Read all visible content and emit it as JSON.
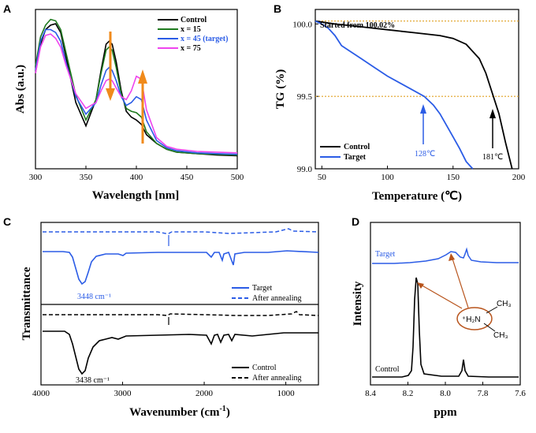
{
  "colors": {
    "black": "#000000",
    "green": "#1f7a1f",
    "blue": "#2b5ce6",
    "magenta": "#ee44ee",
    "orange": "#f08a1a",
    "dotted": "#e0a020",
    "brown": "#b8541c"
  },
  "chart_data": [
    {
      "id": "A",
      "type": "line",
      "panel_label": "A",
      "xlabel": "Wavelength [nm]",
      "ylabel": "Abs (a.u.)",
      "ylabel_display": "Abs (a.u.)",
      "xlim": [
        300,
        500
      ],
      "xticks": [
        "300",
        "350",
        "400",
        "450",
        "500"
      ],
      "legend": [
        "Control",
        "x = 15",
        "x = 45 (target)",
        "x = 75"
      ],
      "series": [
        {
          "name": "Control",
          "x": [
            300,
            305,
            310,
            315,
            320,
            325,
            330,
            340,
            350,
            360,
            365,
            370,
            373,
            376,
            380,
            385,
            390,
            395,
            400,
            405,
            410,
            420,
            430,
            440,
            460,
            480,
            500
          ],
          "y": [
            0.6,
            0.8,
            0.9,
            0.93,
            0.94,
            0.88,
            0.72,
            0.4,
            0.24,
            0.42,
            0.62,
            0.8,
            0.82,
            0.8,
            0.68,
            0.48,
            0.34,
            0.3,
            0.28,
            0.25,
            0.18,
            0.12,
            0.08,
            0.06,
            0.05,
            0.04,
            0.035
          ]
        },
        {
          "name": "x = 15",
          "x": [
            300,
            305,
            310,
            315,
            320,
            325,
            330,
            340,
            350,
            360,
            365,
            370,
            373,
            376,
            380,
            385,
            390,
            395,
            400,
            405,
            410,
            420,
            430,
            440,
            460,
            480,
            500
          ],
          "y": [
            0.65,
            0.85,
            0.93,
            0.97,
            0.96,
            0.9,
            0.75,
            0.45,
            0.28,
            0.42,
            0.6,
            0.76,
            0.78,
            0.76,
            0.64,
            0.46,
            0.36,
            0.34,
            0.33,
            0.3,
            0.2,
            0.12,
            0.08,
            0.06,
            0.05,
            0.045,
            0.04
          ]
        },
        {
          "name": "x = 45 (target)",
          "x": [
            300,
            305,
            310,
            315,
            320,
            325,
            330,
            340,
            350,
            360,
            365,
            370,
            373,
            376,
            380,
            385,
            390,
            395,
            400,
            405,
            410,
            420,
            430,
            440,
            460,
            480,
            500
          ],
          "y": [
            0.62,
            0.82,
            0.9,
            0.9,
            0.88,
            0.82,
            0.68,
            0.44,
            0.32,
            0.4,
            0.52,
            0.62,
            0.64,
            0.62,
            0.55,
            0.44,
            0.38,
            0.4,
            0.44,
            0.42,
            0.28,
            0.14,
            0.09,
            0.07,
            0.055,
            0.05,
            0.045
          ]
        },
        {
          "name": "x = 75",
          "x": [
            300,
            305,
            310,
            315,
            320,
            325,
            330,
            340,
            350,
            360,
            365,
            370,
            373,
            376,
            380,
            385,
            390,
            395,
            400,
            405,
            410,
            420,
            430,
            440,
            460,
            480,
            500
          ],
          "y": [
            0.6,
            0.78,
            0.86,
            0.87,
            0.84,
            0.78,
            0.66,
            0.46,
            0.36,
            0.4,
            0.48,
            0.55,
            0.56,
            0.55,
            0.5,
            0.44,
            0.42,
            0.48,
            0.58,
            0.56,
            0.35,
            0.16,
            0.1,
            0.08,
            0.065,
            0.06,
            0.055
          ]
        }
      ]
    },
    {
      "id": "B",
      "type": "line",
      "panel_label": "B",
      "xlabel": "Temperature (℃)",
      "ylabel": "TG (%)",
      "xlim": [
        45,
        200
      ],
      "ylim": [
        99.0,
        100.1
      ],
      "xticks": [
        "50",
        "100",
        "150",
        "200"
      ],
      "yticks": [
        "99.0",
        "99.5",
        "100.0"
      ],
      "annotation_top": "Started from 100.02%",
      "annotation_target": "128℃",
      "annotation_control": "181℃",
      "legend": [
        "Control",
        "Target"
      ],
      "hlines": [
        100.02,
        99.5
      ],
      "series": [
        {
          "name": "Control",
          "x": [
            45,
            60,
            80,
            100,
            120,
            140,
            150,
            160,
            170,
            175,
            180,
            185,
            190,
            195
          ],
          "y": [
            100.02,
            100.0,
            99.98,
            99.96,
            99.94,
            99.92,
            99.9,
            99.86,
            99.76,
            99.66,
            99.52,
            99.38,
            99.18,
            99.0
          ]
        },
        {
          "name": "Target",
          "x": [
            45,
            50,
            55,
            60,
            65,
            70,
            80,
            90,
            100,
            110,
            120,
            128,
            135,
            140,
            145,
            150,
            155,
            160,
            165
          ],
          "y": [
            100.02,
            100.0,
            99.97,
            99.92,
            99.85,
            99.82,
            99.76,
            99.7,
            99.64,
            99.59,
            99.54,
            99.5,
            99.44,
            99.38,
            99.3,
            99.22,
            99.14,
            99.05,
            98.96
          ]
        }
      ]
    },
    {
      "id": "C",
      "type": "line",
      "panel_label": "C",
      "xlabel": "Wavenumber (cm⁻¹)",
      "xlabel_main": "Wavenumber (cm",
      "xlabel_sup": "-1",
      "xlabel_close": ")",
      "ylabel": "Transmittance",
      "xlim": [
        4000,
        600
      ],
      "xticks": [
        "4000",
        "3000",
        "2000",
        "1000"
      ],
      "annotation_target": "3448 cm⁻¹",
      "annotation_control": "3438 cm⁻¹",
      "legend_top": [
        "Target",
        "After annealing"
      ],
      "legend_bottom": [
        "Control",
        "After annealing"
      ]
    },
    {
      "id": "D",
      "type": "line",
      "panel_label": "D",
      "xlabel": "ppm",
      "ylabel": "Intensity",
      "xlim": [
        8.4,
        7.6
      ],
      "xticks": [
        "8.4",
        "8.2",
        "8.0",
        "7.8",
        "7.6"
      ],
      "label_target": "Target",
      "label_control": "Control",
      "molecule": {
        "n_group": "⁺H₂N",
        "ch3_top": "CH₃",
        "ch3_bottom": "CH₃"
      }
    }
  ]
}
